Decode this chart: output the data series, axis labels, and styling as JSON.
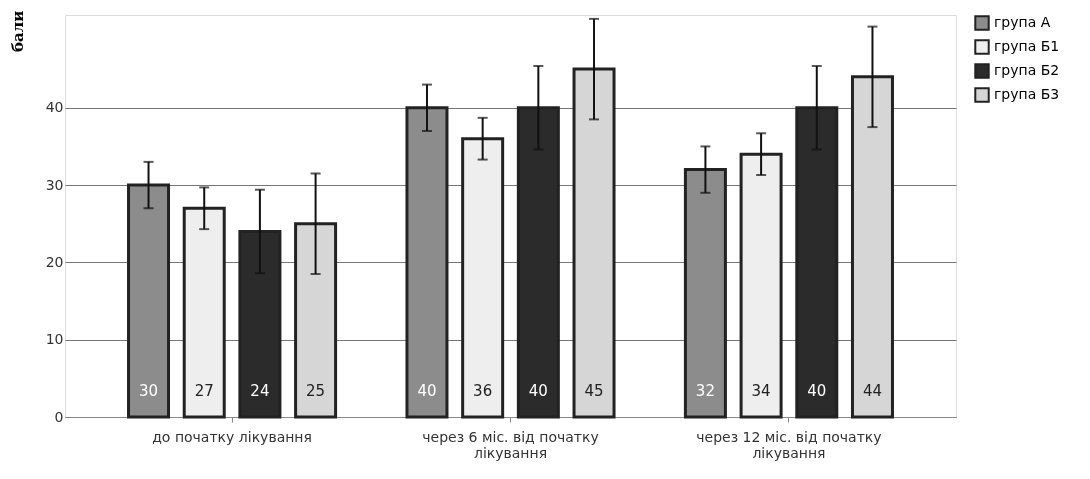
{
  "chart_data": {
    "type": "bar",
    "ylabel": "бали",
    "categories": [
      "до початку лікування",
      "через 6 міс. від початку лікування",
      "через 12 міс. від початку лікування"
    ],
    "series": [
      {
        "name": "група А",
        "color": "#8c8c8c",
        "values": [
          30,
          40,
          32
        ],
        "errors": [
          3,
          3,
          3
        ]
      },
      {
        "name": "група Б1",
        "color": "#eeeeee",
        "values": [
          27,
          36,
          34
        ],
        "errors": [
          2.7,
          2.7,
          2.7
        ]
      },
      {
        "name": "група Б2",
        "color": "#2b2b2b",
        "values": [
          24,
          40,
          40
        ],
        "errors": [
          5.4,
          5.4,
          5.4
        ]
      },
      {
        "name": "група Б3",
        "color": "#d6d6d6",
        "values": [
          25,
          45,
          44
        ],
        "errors": [
          6.5,
          6.5,
          6.5
        ]
      }
    ],
    "ylim": [
      0,
      52
    ],
    "yticks": [
      0,
      10,
      20,
      30,
      40
    ],
    "grid": "y",
    "legend": "right",
    "data_labels": true
  }
}
